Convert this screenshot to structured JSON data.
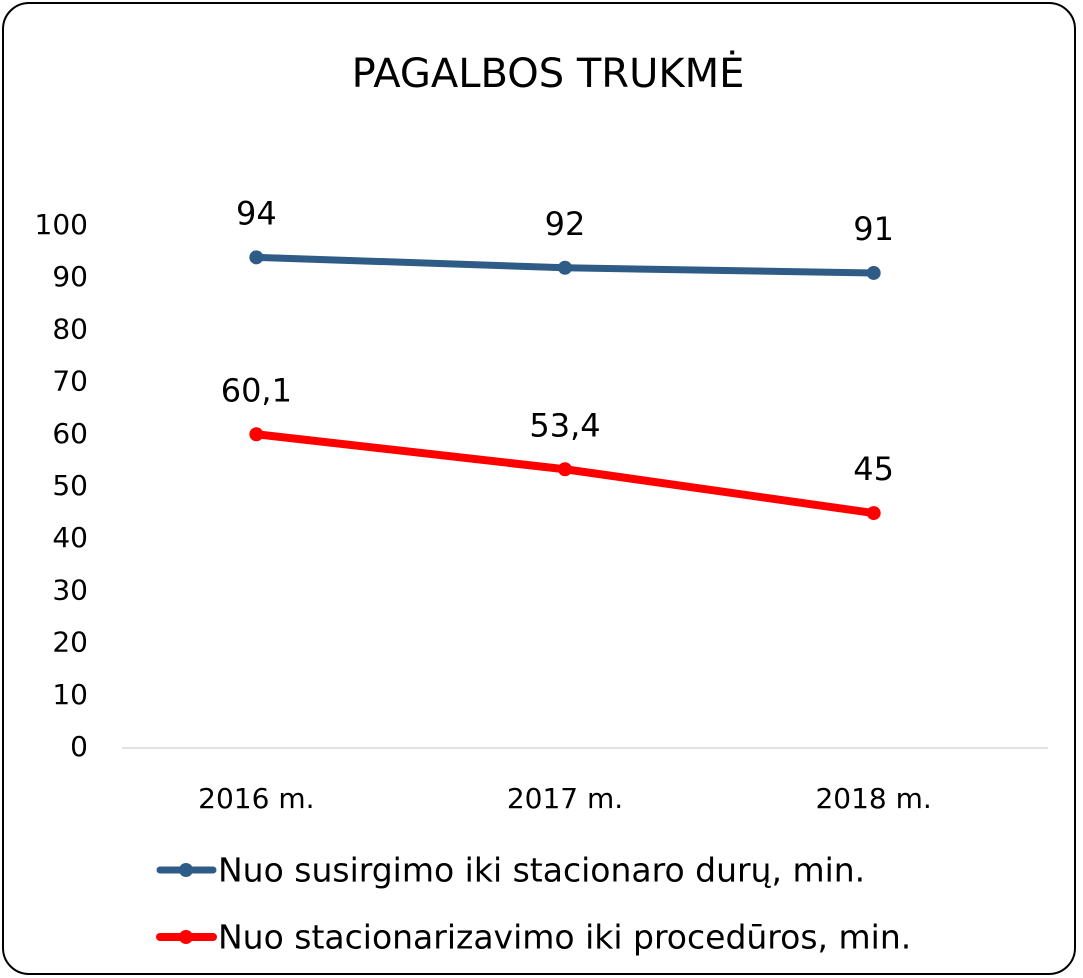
{
  "chart_data": {
    "type": "line",
    "title": "PAGALBOS TRUKMĖ",
    "categories": [
      "2016 m.",
      "2017 m.",
      "2018 m."
    ],
    "series": [
      {
        "name": "Nuo susirgimo iki stacionaro durų, min.",
        "color": "#2f5b87",
        "values": [
          94,
          92,
          91
        ]
      },
      {
        "name": "Nuo stacionarizavimo iki procedūros, min.",
        "color": "#ff0000",
        "values": [
          60.1,
          53.4,
          45
        ],
        "value_labels": [
          "60,1",
          "53,4",
          "45"
        ]
      }
    ],
    "ylim": [
      0,
      100
    ],
    "yticks": [
      0,
      10,
      20,
      30,
      40,
      50,
      60,
      70,
      80,
      90,
      100
    ],
    "grid": false,
    "legend": "bottom"
  }
}
